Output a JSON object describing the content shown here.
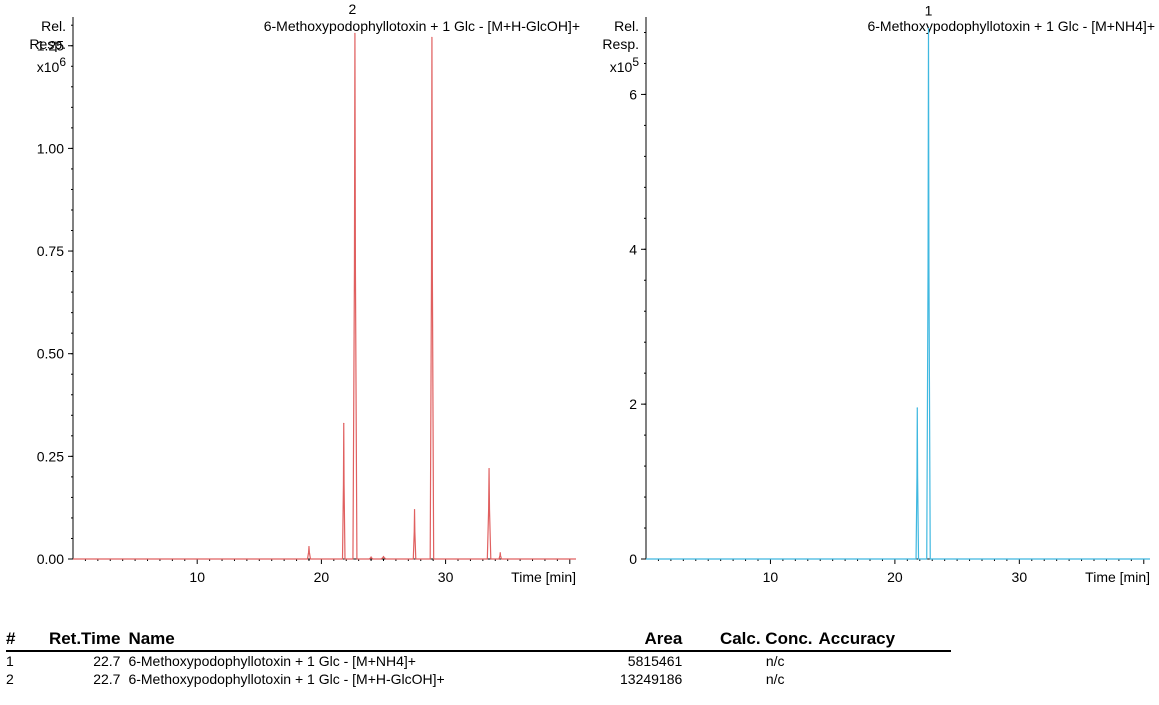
{
  "chart_data": [
    {
      "type": "line",
      "title": "6-Methoxypodophyllotoxin + 1 Glc - [M+H-GlcOH]+",
      "ylabel": "Rel.",
      "ylabel2": "Resp.",
      "yexp_base": "x10",
      "yexp": "6",
      "xlabel": "Time [min]",
      "xlim": [
        0,
        40.5
      ],
      "ylim": [
        0,
        1.32
      ],
      "xticks": [
        10,
        20,
        30
      ],
      "xtick_labels": [
        "10",
        "20",
        "30"
      ],
      "yticks": [
        0,
        0.25,
        0.5,
        0.75,
        1.0,
        1.25
      ],
      "ytick_labels": [
        "0.00",
        "0.25",
        "0.50",
        "0.75",
        "1.00",
        "1.25"
      ],
      "color": "#e06060",
      "peaks": [
        {
          "x": 19.0,
          "y": 0.03,
          "w": 0.12
        },
        {
          "x": 21.8,
          "y": 0.33,
          "w": 0.1
        },
        {
          "x": 22.7,
          "y": 1.28,
          "w": 0.16
        },
        {
          "x": 24.0,
          "y": 0.005,
          "w": 0.15
        },
        {
          "x": 25.0,
          "y": 0.006,
          "w": 0.2
        },
        {
          "x": 27.5,
          "y": 0.12,
          "w": 0.1
        },
        {
          "x": 28.9,
          "y": 1.27,
          "w": 0.14
        },
        {
          "x": 33.5,
          "y": 0.22,
          "w": 0.14
        },
        {
          "x": 34.4,
          "y": 0.015,
          "w": 0.1
        }
      ],
      "peak_labels": [
        {
          "text": "2",
          "x": 22.5,
          "y": 1.32
        }
      ]
    },
    {
      "type": "line",
      "title": "6-Methoxypodophyllotoxin + 1 Glc - [M+NH4]+",
      "ylabel": "Rel.",
      "ylabel2": "Resp.",
      "yexp_base": "x10",
      "yexp": "5",
      "xlabel": "Time [min]",
      "xlim": [
        0,
        40.5
      ],
      "ylim": [
        0,
        7.0
      ],
      "xticks": [
        10,
        20,
        30
      ],
      "xtick_labels": [
        "10",
        "20",
        "30"
      ],
      "yticks": [
        0,
        2,
        4,
        6
      ],
      "ytick_labels": [
        "0",
        "2",
        "4",
        "6"
      ],
      "color": "#3fb8e0",
      "peaks": [
        {
          "x": 21.8,
          "y": 1.95,
          "w": 0.1
        },
        {
          "x": 22.7,
          "y": 6.85,
          "w": 0.14
        }
      ],
      "peak_labels": [
        {
          "text": "1",
          "x": 22.7,
          "y": 6.98
        }
      ]
    }
  ],
  "results_table": {
    "headers": [
      "#",
      "Ret.Time",
      "Name",
      "Area",
      "Calc. Conc.",
      "Accuracy"
    ],
    "rows": [
      [
        "1",
        "22.7",
        "6-Methoxypodophyllotoxin + 1 Glc - [M+NH4]+",
        "5815461",
        "n/c",
        ""
      ],
      [
        "2",
        "22.7",
        "6-Methoxypodophyllotoxin + 1 Glc - [M+H-GlcOH]+",
        "13249186",
        "n/c",
        ""
      ]
    ]
  }
}
